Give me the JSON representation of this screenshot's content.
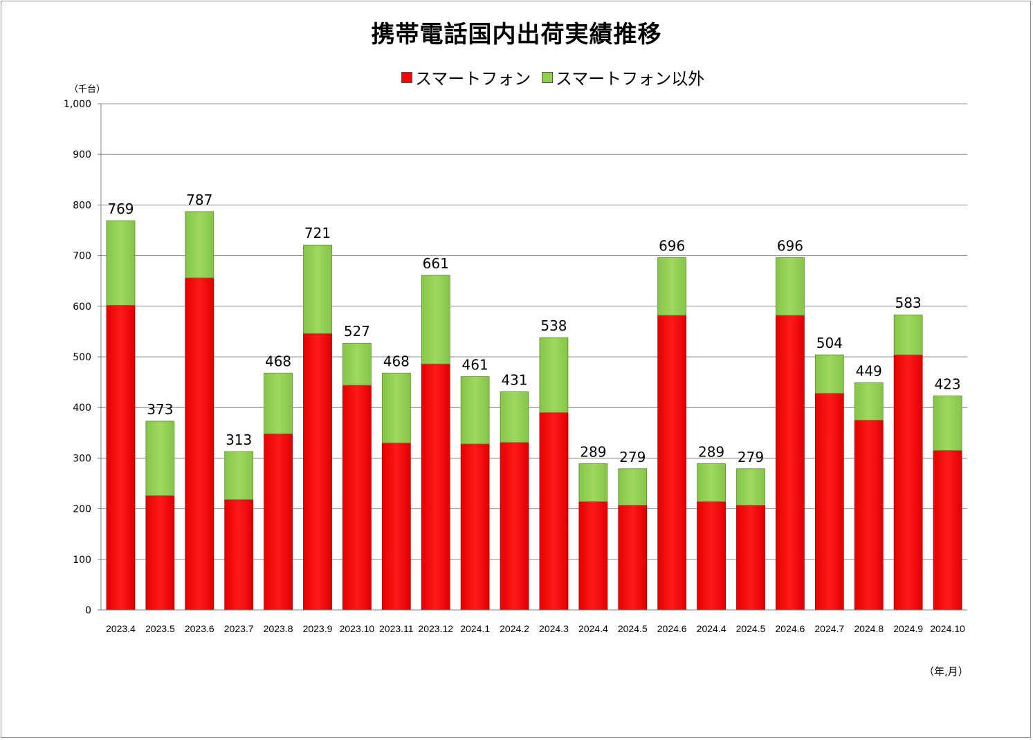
{
  "chart_data": {
    "type": "bar",
    "stacked": true,
    "title": "携帯電話国内出荷実績推移",
    "y_unit_label": "（千台）",
    "x_unit_label": "（年,月）",
    "ylim": [
      0,
      1000
    ],
    "y_ticks": [
      "0",
      "100",
      "200",
      "300",
      "400",
      "500",
      "600",
      "700",
      "800",
      "900",
      "1,000"
    ],
    "y_tick_values": [
      0,
      100,
      200,
      300,
      400,
      500,
      600,
      700,
      800,
      900,
      1000
    ],
    "grid": true,
    "legend_position": "top-center",
    "categories": [
      "2023.4",
      "2023.5",
      "2023.6",
      "2023.7",
      "2023.8",
      "2023.9",
      "2023.10",
      "2023.11",
      "2023.12",
      "2024.1",
      "2024.2",
      "2024.3",
      "2024.4",
      "2024.5",
      "2024.6",
      "2024.4",
      "2024.5",
      "2024.6",
      "2024.7",
      "2024.8",
      "2024.9",
      "2024.10"
    ],
    "series": [
      {
        "name": "スマートフォン",
        "color": "#ff0000",
        "values": [
          602,
          226,
          656,
          218,
          348,
          546,
          444,
          330,
          486,
          328,
          331,
          390,
          214,
          207,
          582,
          214,
          207,
          582,
          428,
          375,
          504,
          315
        ]
      },
      {
        "name": "スマートフォン以外",
        "color": "#92d050",
        "values": [
          167,
          147,
          131,
          95,
          120,
          175,
          83,
          138,
          175,
          133,
          100,
          148,
          75,
          72,
          114,
          75,
          72,
          114,
          76,
          74,
          79,
          108
        ]
      }
    ],
    "totals": [
      769,
      373,
      787,
      313,
      468,
      721,
      527,
      468,
      661,
      461,
      431,
      538,
      289,
      279,
      696,
      289,
      279,
      696,
      504,
      449,
      583,
      423
    ]
  }
}
